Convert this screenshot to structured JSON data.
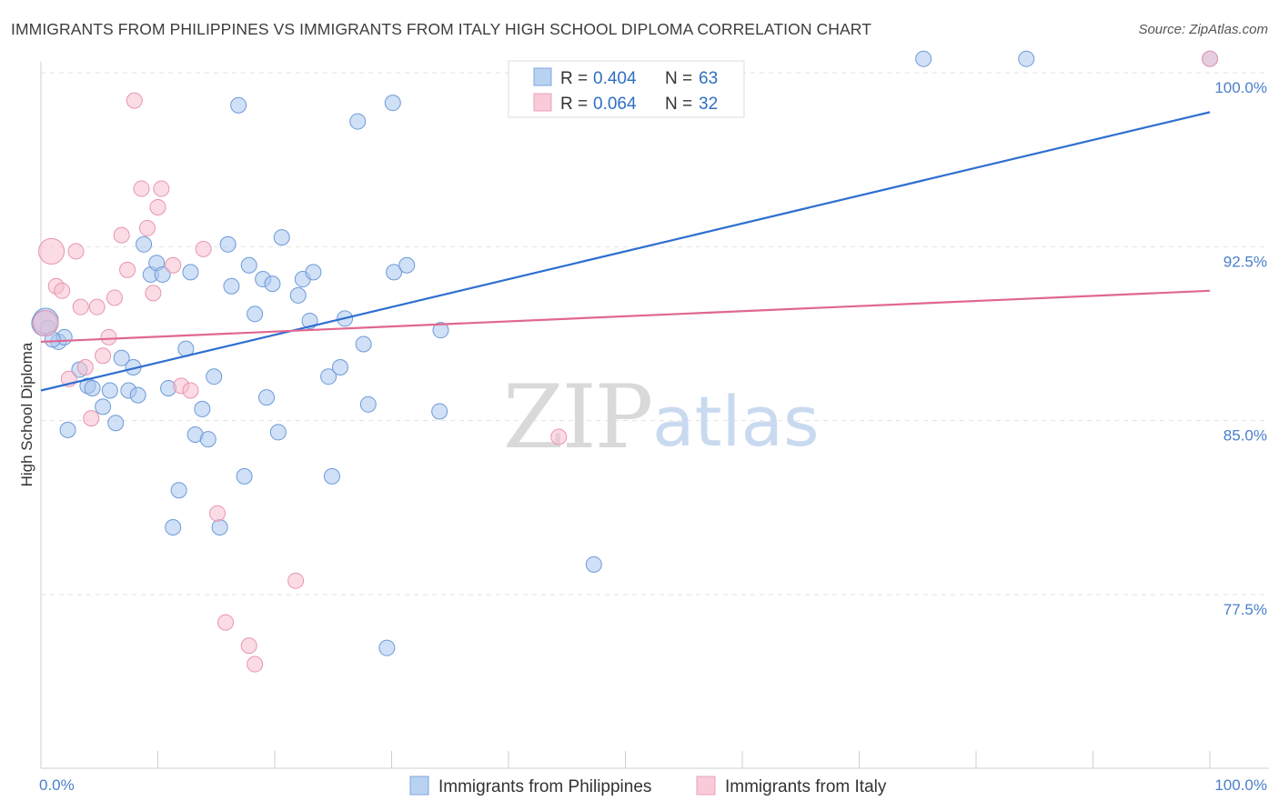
{
  "title": "IMMIGRANTS FROM PHILIPPINES VS IMMIGRANTS FROM ITALY HIGH SCHOOL DIPLOMA CORRELATION CHART",
  "source": "Source: ZipAtlas.com",
  "watermark": {
    "zip": "ZIP",
    "atlas": "atlas"
  },
  "chart_data": {
    "type": "scatter",
    "ylabel": "High School Diploma",
    "xlim": [
      0,
      100
    ],
    "ylim": [
      70.5,
      101
    ],
    "x_tick_labels": [
      {
        "value": 0,
        "label": "0.0%"
      },
      {
        "value": 100,
        "label": "100.0%"
      }
    ],
    "y_ticks": [
      {
        "value": 77.5,
        "label": "77.5%"
      },
      {
        "value": 85.0,
        "label": "85.0%"
      },
      {
        "value": 92.5,
        "label": "92.5%"
      },
      {
        "value": 100.0,
        "label": "100.0%"
      }
    ],
    "grid": "horizontal dashed",
    "legend_position": "top-center",
    "series": [
      {
        "name": "Immigrants from Philippines",
        "color": "#a9c6ee",
        "stroke": "#6d9ad8",
        "line_color": "#2f6fcf",
        "R": "0.404",
        "N": "63",
        "trend": [
          [
            0,
            86.3
          ],
          [
            100,
            98.3
          ]
        ],
        "points": [
          [
            0.3,
            89.2
          ],
          [
            0.6,
            89.0
          ],
          [
            1.5,
            88.4
          ],
          [
            2.0,
            88.6
          ],
          [
            2.3,
            84.6
          ],
          [
            3.3,
            87.2
          ],
          [
            4.0,
            86.5
          ],
          [
            4.4,
            86.4
          ],
          [
            5.3,
            85.6
          ],
          [
            5.9,
            86.3
          ],
          [
            6.4,
            84.9
          ],
          [
            6.9,
            87.7
          ],
          [
            7.5,
            86.3
          ],
          [
            7.9,
            87.3
          ],
          [
            8.3,
            86.1
          ],
          [
            8.8,
            92.6
          ],
          [
            9.4,
            91.3
          ],
          [
            9.9,
            91.8
          ],
          [
            10.4,
            91.3
          ],
          [
            10.9,
            86.4
          ],
          [
            11.8,
            82.0
          ],
          [
            11.3,
            80.4
          ],
          [
            12.4,
            88.1
          ],
          [
            12.8,
            91.4
          ],
          [
            13.2,
            84.4
          ],
          [
            13.8,
            85.5
          ],
          [
            14.3,
            84.2
          ],
          [
            14.8,
            86.9
          ],
          [
            15.3,
            80.4
          ],
          [
            16.0,
            92.6
          ],
          [
            16.3,
            90.8
          ],
          [
            16.9,
            98.6
          ],
          [
            17.4,
            82.6
          ],
          [
            17.8,
            91.7
          ],
          [
            18.3,
            89.6
          ],
          [
            19.0,
            91.1
          ],
          [
            19.3,
            86.0
          ],
          [
            19.8,
            90.9
          ],
          [
            20.3,
            84.5
          ],
          [
            20.6,
            92.9
          ],
          [
            22.0,
            90.4
          ],
          [
            22.4,
            91.1
          ],
          [
            23.0,
            89.3
          ],
          [
            23.3,
            91.4
          ],
          [
            24.6,
            86.9
          ],
          [
            24.9,
            82.6
          ],
          [
            25.6,
            87.3
          ],
          [
            26.0,
            89.4
          ],
          [
            27.1,
            97.9
          ],
          [
            27.6,
            88.3
          ],
          [
            28.0,
            85.7
          ],
          [
            29.6,
            75.2
          ],
          [
            30.1,
            98.7
          ],
          [
            30.2,
            91.4
          ],
          [
            31.3,
            91.7
          ],
          [
            34.2,
            88.9
          ],
          [
            34.1,
            85.4
          ],
          [
            47.3,
            78.8
          ],
          [
            75.5,
            100.6
          ],
          [
            84.3,
            100.6
          ],
          [
            100,
            100.6
          ],
          [
            0.4,
            89.3
          ],
          [
            1.0,
            88.5
          ]
        ]
      },
      {
        "name": "Immigrants from Italy",
        "color": "#f7bfd0",
        "stroke": "#e895b0",
        "line_color": "#e06790",
        "R": "0.064",
        "N": "32",
        "trend": [
          [
            0,
            88.4
          ],
          [
            100,
            90.6
          ]
        ],
        "points": [
          [
            0.4,
            89.2
          ],
          [
            0.9,
            92.3
          ],
          [
            1.3,
            90.8
          ],
          [
            1.8,
            90.6
          ],
          [
            2.4,
            86.8
          ],
          [
            3.0,
            92.3
          ],
          [
            3.4,
            89.9
          ],
          [
            3.8,
            87.3
          ],
          [
            4.3,
            85.1
          ],
          [
            4.8,
            89.9
          ],
          [
            5.3,
            87.8
          ],
          [
            5.8,
            88.6
          ],
          [
            6.3,
            90.3
          ],
          [
            6.9,
            93.0
          ],
          [
            7.4,
            91.5
          ],
          [
            8.0,
            98.8
          ],
          [
            8.6,
            95.0
          ],
          [
            9.1,
            93.3
          ],
          [
            9.6,
            90.5
          ],
          [
            10.0,
            94.2
          ],
          [
            10.3,
            95.0
          ],
          [
            11.3,
            91.7
          ],
          [
            12.0,
            86.5
          ],
          [
            12.8,
            86.3
          ],
          [
            13.9,
            92.4
          ],
          [
            15.1,
            81.0
          ],
          [
            15.8,
            76.3
          ],
          [
            17.8,
            75.3
          ],
          [
            18.3,
            74.5
          ],
          [
            21.8,
            78.1
          ],
          [
            44.3,
            84.3
          ],
          [
            100,
            100.6
          ]
        ]
      }
    ]
  }
}
